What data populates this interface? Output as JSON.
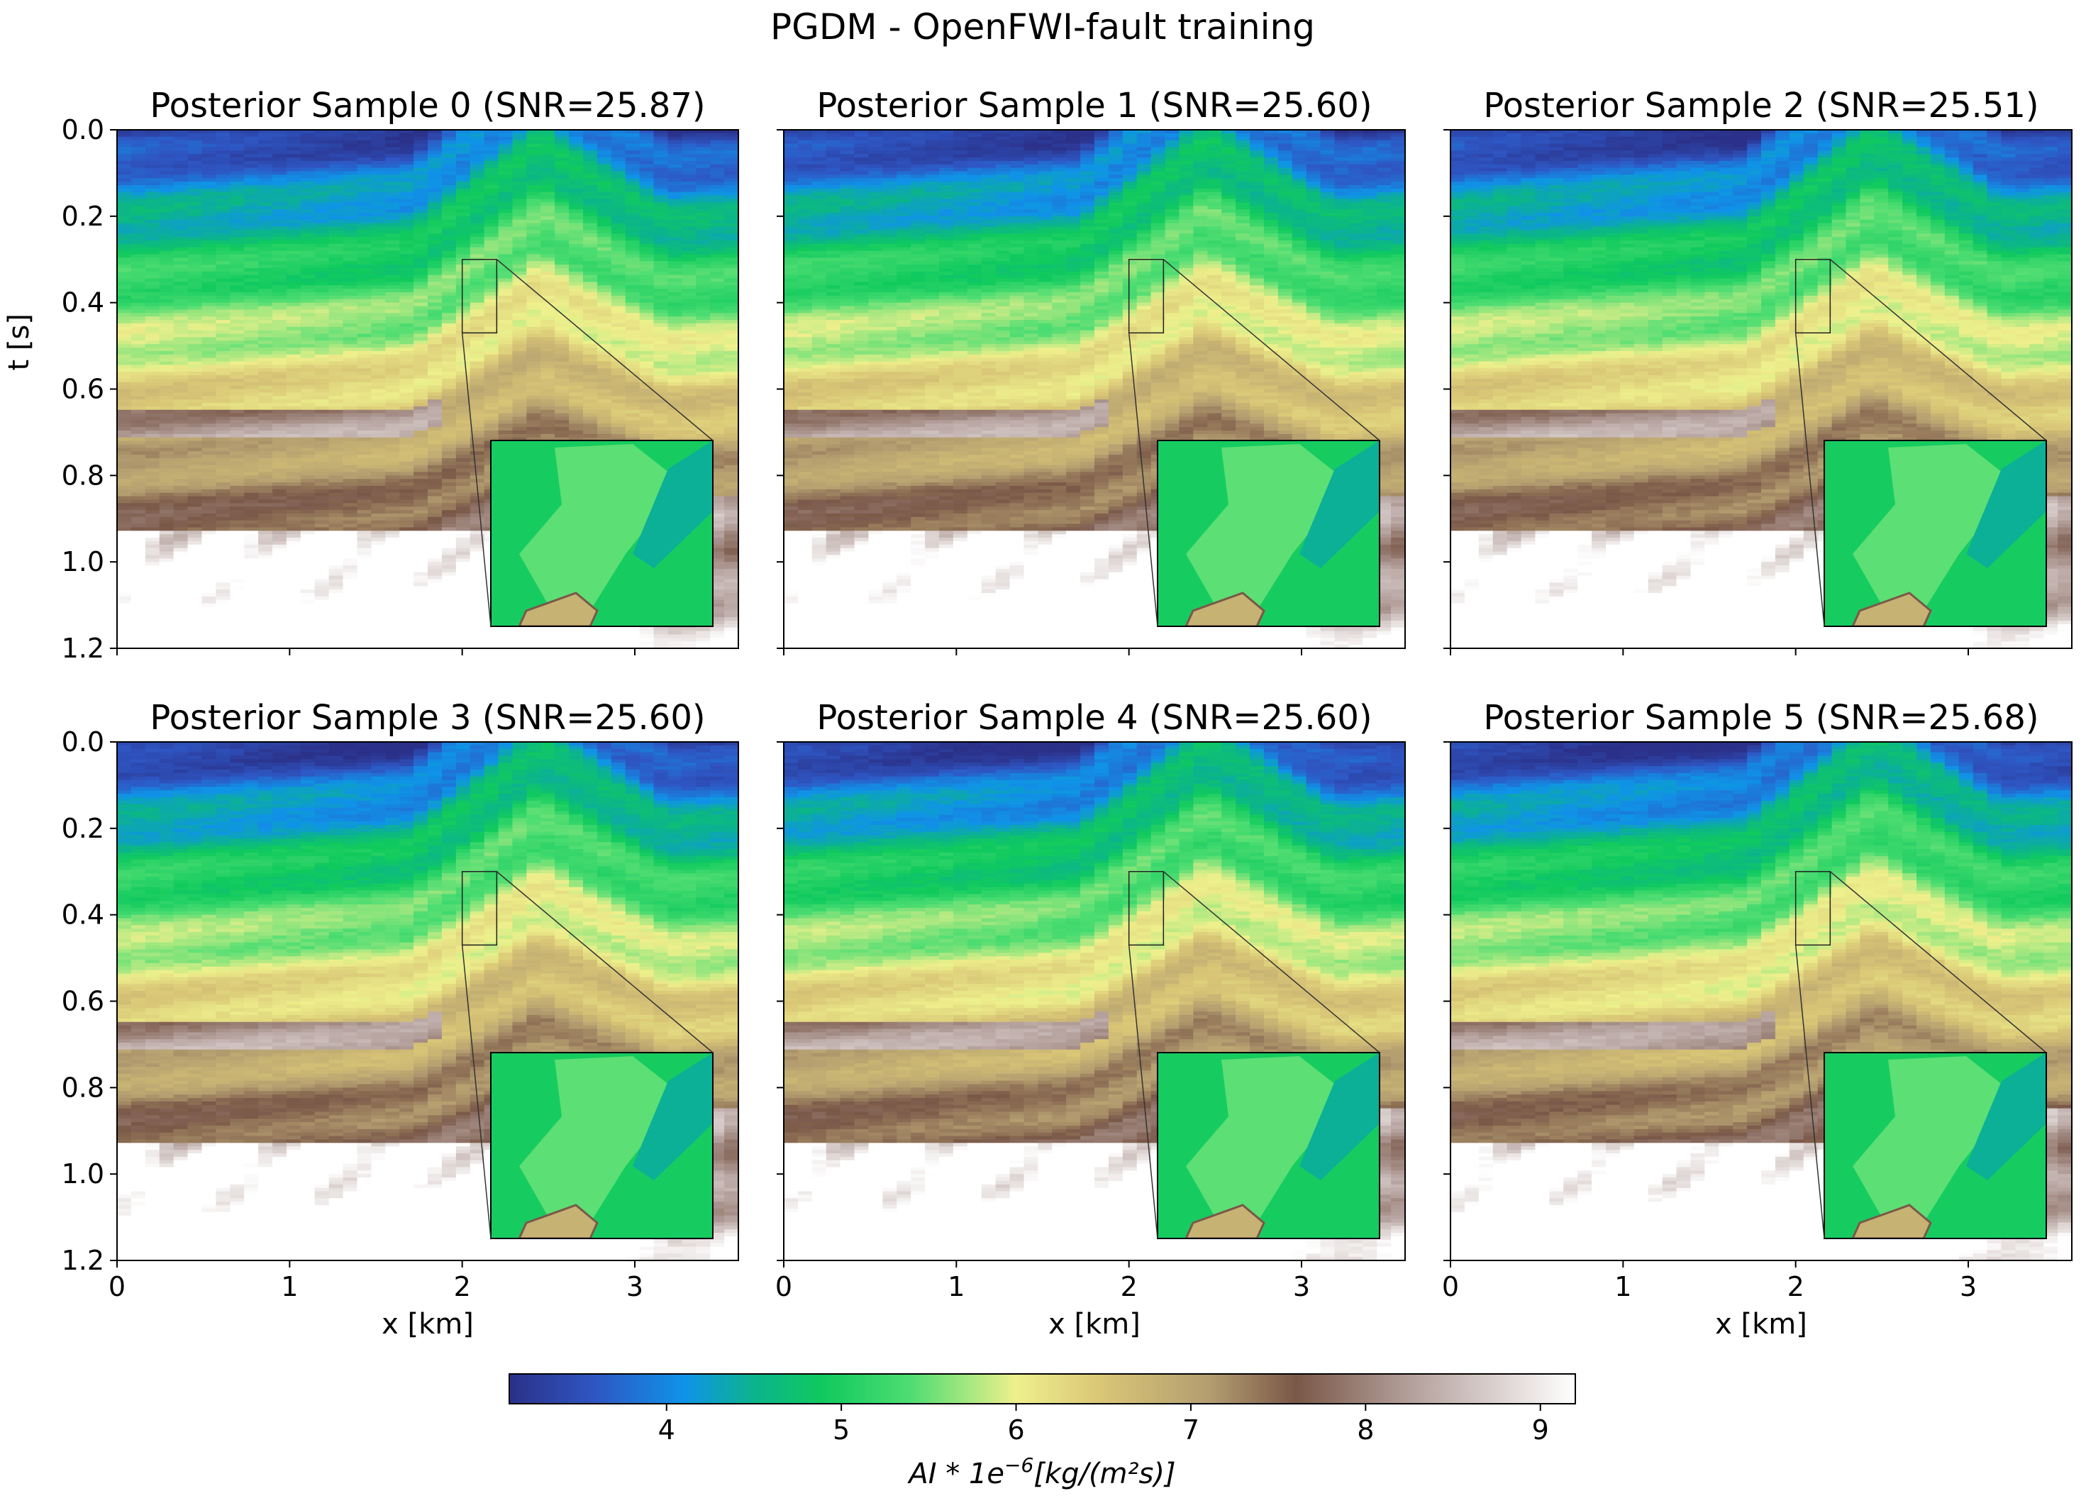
{
  "figure": {
    "suptitle": "PGDM - OpenFWI-fault training"
  },
  "chart_data": {
    "type": "heatmap",
    "panels": [
      {
        "title": "Posterior Sample 0 (SNR=25.87)",
        "sample": 0,
        "snr": 25.87
      },
      {
        "title": "Posterior Sample 1 (SNR=25.60)",
        "sample": 1,
        "snr": 25.6
      },
      {
        "title": "Posterior Sample 2 (SNR=25.51)",
        "sample": 2,
        "snr": 25.51
      },
      {
        "title": "Posterior Sample 3 (SNR=25.60)",
        "sample": 3,
        "snr": 25.6
      },
      {
        "title": "Posterior Sample 4 (SNR=25.60)",
        "sample": 4,
        "snr": 25.6
      },
      {
        "title": "Posterior Sample 5 (SNR=25.68)",
        "sample": 5,
        "snr": 25.68
      }
    ],
    "grid": {
      "rows": 2,
      "cols": 3
    },
    "xlabel": "x [km]",
    "ylabel": "t [s]",
    "xlim": [
      0,
      3.6
    ],
    "ylim": [
      1.2,
      0.0
    ],
    "x_ticks": [
      0,
      1,
      2,
      3
    ],
    "y_ticks": [
      0.0,
      0.2,
      0.4,
      0.6,
      0.8,
      1.0,
      1.2
    ],
    "x_tick_labels": [
      "0",
      "1",
      "2",
      "3"
    ],
    "y_tick_labels": [
      "0.0",
      "0.2",
      "0.4",
      "0.6",
      "0.8",
      "1.0",
      "1.2"
    ],
    "zoom_region": {
      "x": [
        2.0,
        2.2
      ],
      "t": [
        0.3,
        0.47
      ]
    },
    "colorbar": {
      "label_base": "AI * 1e",
      "label_exp": "−6",
      "label_unit": "[kg/(m²s)]",
      "range": [
        3.1,
        9.2
      ],
      "ticks": [
        4,
        5,
        6,
        7,
        8,
        9
      ],
      "tick_labels": [
        "4",
        "5",
        "6",
        "7",
        "8",
        "9"
      ],
      "colormap": "gist_earth-like",
      "stops": [
        {
          "v": 3.1,
          "c": "#2b3088"
        },
        {
          "v": 3.6,
          "c": "#2e57c4"
        },
        {
          "v": 4.1,
          "c": "#0f93e8"
        },
        {
          "v": 4.5,
          "c": "#0bb48c"
        },
        {
          "v": 4.9,
          "c": "#10ca5e"
        },
        {
          "v": 5.4,
          "c": "#4fdd72"
        },
        {
          "v": 6.0,
          "c": "#eef08c"
        },
        {
          "v": 6.5,
          "c": "#d8c576"
        },
        {
          "v": 7.1,
          "c": "#b49e70"
        },
        {
          "v": 7.6,
          "c": "#7a5848"
        },
        {
          "v": 8.3,
          "c": "#b7a4a0"
        },
        {
          "v": 9.2,
          "c": "#ffffff"
        }
      ]
    }
  }
}
